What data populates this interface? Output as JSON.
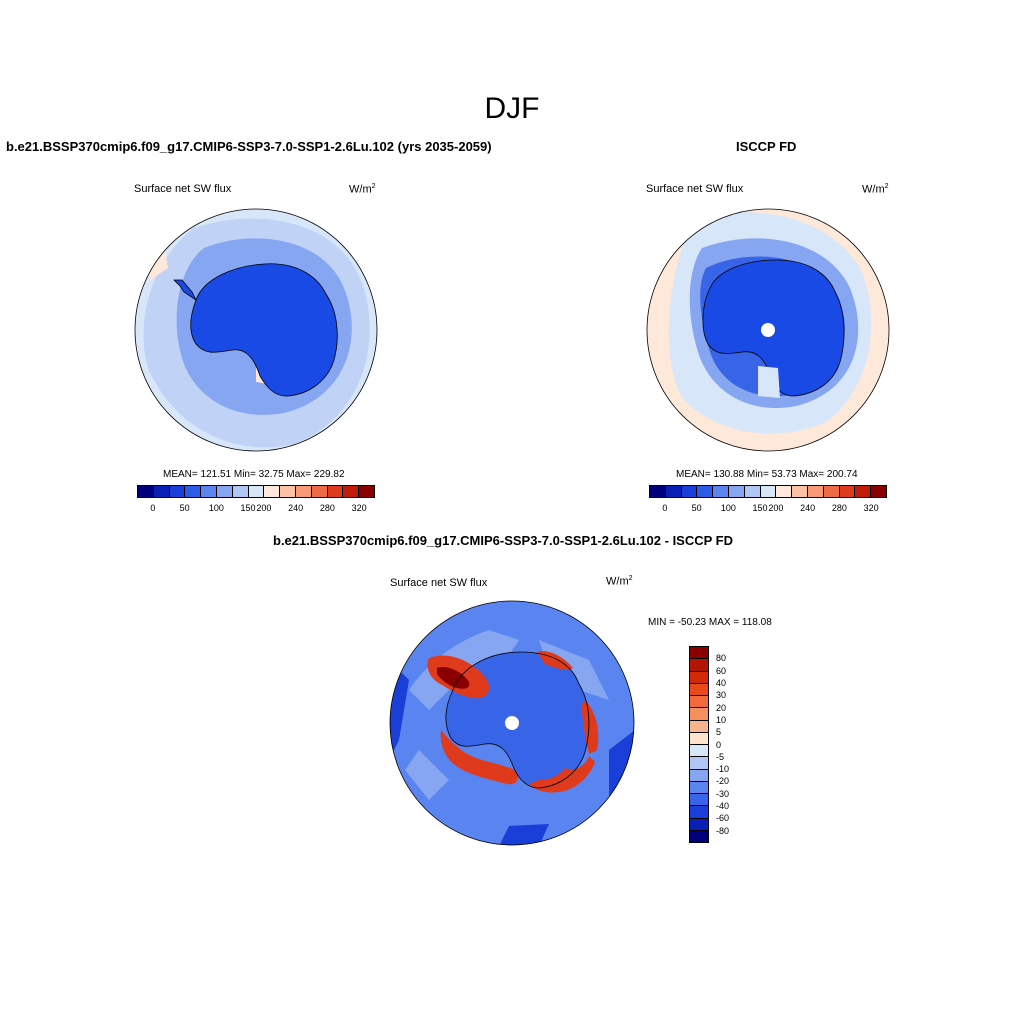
{
  "main_title": "DJF",
  "left_panel": {
    "header": "b.e21.BSSP370cmip6.f09_g17.CMIP6-SSP3-7.0-SSP1-2.6Lu.102 (yrs 2035-2059)",
    "variable": "Surface net SW flux",
    "units_base": "W/m",
    "units_exp": "2",
    "stats": "MEAN= 121.51  Min=  32.75  Max= 229.82"
  },
  "right_panel": {
    "header": "ISCCP FD",
    "variable": "Surface net SW flux",
    "units_base": "W/m",
    "units_exp": "2",
    "stats": "MEAN= 130.88  Min=  53.73  Max= 200.74"
  },
  "diff_panel": {
    "header": "b.e21.BSSP370cmip6.f09_g17.CMIP6-SSP3-7.0-SSP1-2.6Lu.102 - ISCCP FD",
    "variable": "Surface net SW flux",
    "units_base": "W/m",
    "units_exp": "2",
    "minmax": "MIN = -50.23 MAX = 118.08"
  },
  "abs_colorbar": {
    "colors": [
      "#00007f",
      "#0a1fb4",
      "#1a3ed8",
      "#2b5ce8",
      "#5a84f0",
      "#86a6f2",
      "#b0c6f4",
      "#d8e6fa",
      "#fde8da",
      "#fbc2a6",
      "#f89a78",
      "#ef6a48",
      "#e03a1c",
      "#c01c0a",
      "#8a0000"
    ],
    "ticks": [
      "0",
      "50",
      "100",
      "150",
      "200",
      "240",
      "280",
      "320"
    ]
  },
  "diff_colorbar": {
    "colors": [
      "#8a0000",
      "#b41404",
      "#d2290a",
      "#e84a1c",
      "#f26a3a",
      "#f58f5c",
      "#f8b48e",
      "#fde2cc",
      "#d8e6fa",
      "#b0c6f4",
      "#86a6f2",
      "#5a84f0",
      "#3864e8",
      "#1a3ed8",
      "#0a1fb4",
      "#00007f"
    ],
    "ticks": [
      "80",
      "60",
      "40",
      "30",
      "20",
      "10",
      "5",
      "0",
      "-5",
      "-10",
      "-20",
      "-30",
      "-40",
      "-60",
      "-80"
    ]
  },
  "colors": {
    "ocean_light": "#d8e6fa",
    "ocean_mid": "#b0c6f4",
    "ice_blue": "#2b5ce8",
    "continent_deep": "#1a4ae6",
    "warm_pale": "#fde8da",
    "diff_red": "#e03a1c",
    "diff_dark_red": "#8a0000",
    "diff_blue": "#3864e8"
  }
}
